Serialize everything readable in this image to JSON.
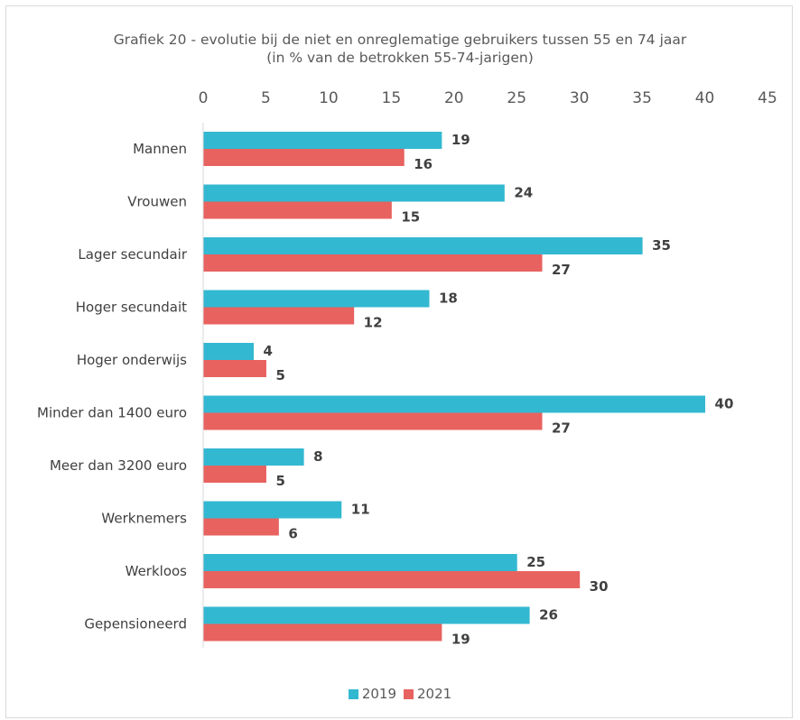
{
  "chart_data": {
    "type": "bar",
    "orientation": "horizontal",
    "title": "Grafiek 20 - evolutie bij de niet en onreglematige gebruikers tussen 55 en 74 jaar",
    "subtitle": "(in % van de betrokken 55-74-jarigen)",
    "categories": [
      "Mannen",
      "Vrouwen",
      "Lager secundair",
      "Hoger secundait",
      "Hoger onderwijs",
      "Minder dan 1400 euro",
      "Meer dan 3200 euro",
      "Werknemers",
      "Werkloos",
      "Gepensioneerd"
    ],
    "series": [
      {
        "name": "2019",
        "color": "#33b8d1",
        "values": [
          19,
          24,
          35,
          18,
          4,
          40,
          8,
          11,
          25,
          26
        ]
      },
      {
        "name": "2021",
        "color": "#e8625f",
        "values": [
          16,
          15,
          27,
          12,
          5,
          27,
          5,
          6,
          30,
          19
        ]
      }
    ],
    "value_axis": {
      "min": 0,
      "max": 45,
      "ticks": [
        "0",
        "5",
        "10",
        "15",
        "20",
        "25",
        "30",
        "35",
        "40",
        "45"
      ],
      "position": "top"
    },
    "grid": false,
    "legend_position": "bottom"
  }
}
